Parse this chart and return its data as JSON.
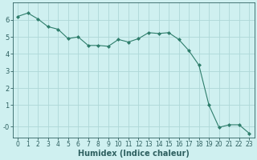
{
  "x": [
    0,
    1,
    2,
    3,
    4,
    5,
    6,
    7,
    8,
    9,
    10,
    11,
    12,
    13,
    14,
    15,
    16,
    17,
    18,
    19,
    20,
    21,
    22,
    23
  ],
  "y": [
    6.2,
    6.4,
    6.05,
    5.6,
    5.45,
    4.9,
    5.0,
    4.5,
    4.5,
    4.45,
    4.85,
    4.7,
    4.9,
    5.25,
    5.2,
    5.25,
    4.85,
    4.2,
    3.35,
    1.0,
    -0.3,
    -0.15,
    -0.15,
    -0.65
  ],
  "line_color": "#2e7d6b",
  "marker": "D",
  "marker_size": 2,
  "bg_color": "#cff0f0",
  "grid_color": "#aed8d8",
  "axis_color": "#2e6060",
  "xlabel": "Humidex (Indice chaleur)",
  "xlabel_fontsize": 7,
  "ylabel_ticks": [
    "-0",
    "1",
    "2",
    "3",
    "4",
    "5",
    "6"
  ],
  "yticks": [
    -0.25,
    1,
    2,
    3,
    4,
    5,
    6
  ],
  "ylim": [
    -0.9,
    7.0
  ],
  "xlim": [
    -0.5,
    23.5
  ],
  "xticks": [
    0,
    1,
    2,
    3,
    4,
    5,
    6,
    7,
    8,
    9,
    10,
    11,
    12,
    13,
    14,
    15,
    16,
    17,
    18,
    19,
    20,
    21,
    22,
    23
  ],
  "tick_fontsize": 5.5
}
